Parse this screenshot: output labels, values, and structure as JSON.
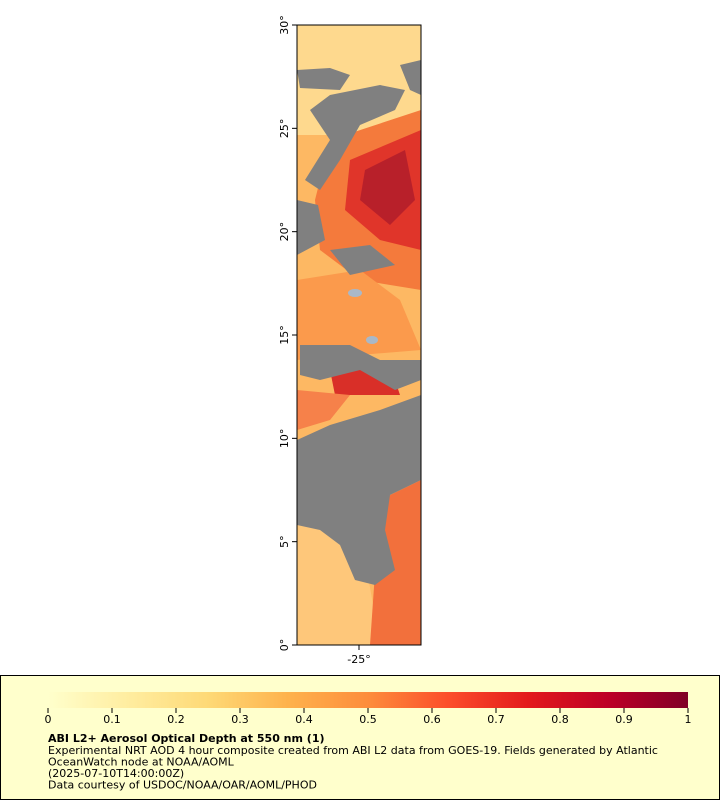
{
  "map": {
    "ylim": [
      0,
      30
    ],
    "xlim": [
      -28,
      -22
    ],
    "yticks": [
      {
        "value": 0,
        "label": "0°"
      },
      {
        "value": 5,
        "label": "5°"
      },
      {
        "value": 10,
        "label": "10°"
      },
      {
        "value": 15,
        "label": "15°"
      },
      {
        "value": 20,
        "label": "20°"
      },
      {
        "value": 25,
        "label": "25°"
      },
      {
        "value": 30,
        "label": "30°"
      }
    ],
    "xticks": [
      {
        "value": -25,
        "label": "-25°"
      }
    ]
  },
  "colorbar": {
    "range": [
      0,
      1
    ],
    "ticks": [
      0,
      0.1,
      0.2,
      0.3,
      0.4,
      0.5,
      0.6,
      0.7,
      0.8,
      0.9,
      1
    ],
    "colors": [
      "#ffffcc",
      "#ffeda0",
      "#fed976",
      "#feb24c",
      "#fd8d3c",
      "#fc4e2a",
      "#e31a1c",
      "#bd0026",
      "#800026"
    ]
  },
  "legend": {
    "title": "ABI L2+ Aerosol Optical Depth at 550 nm (1)",
    "lines": [
      "Experimental NRT AOD 4 hour composite created from ABI L2 data from GOES-19. Fields generated by Atlantic",
      "OceanWatch node at NOAA/AOML",
      "(2025-07-10T14:00:00Z)",
      "Data courtesy of USDOC/NOAA/OAR/AOML/PHOD"
    ]
  }
}
